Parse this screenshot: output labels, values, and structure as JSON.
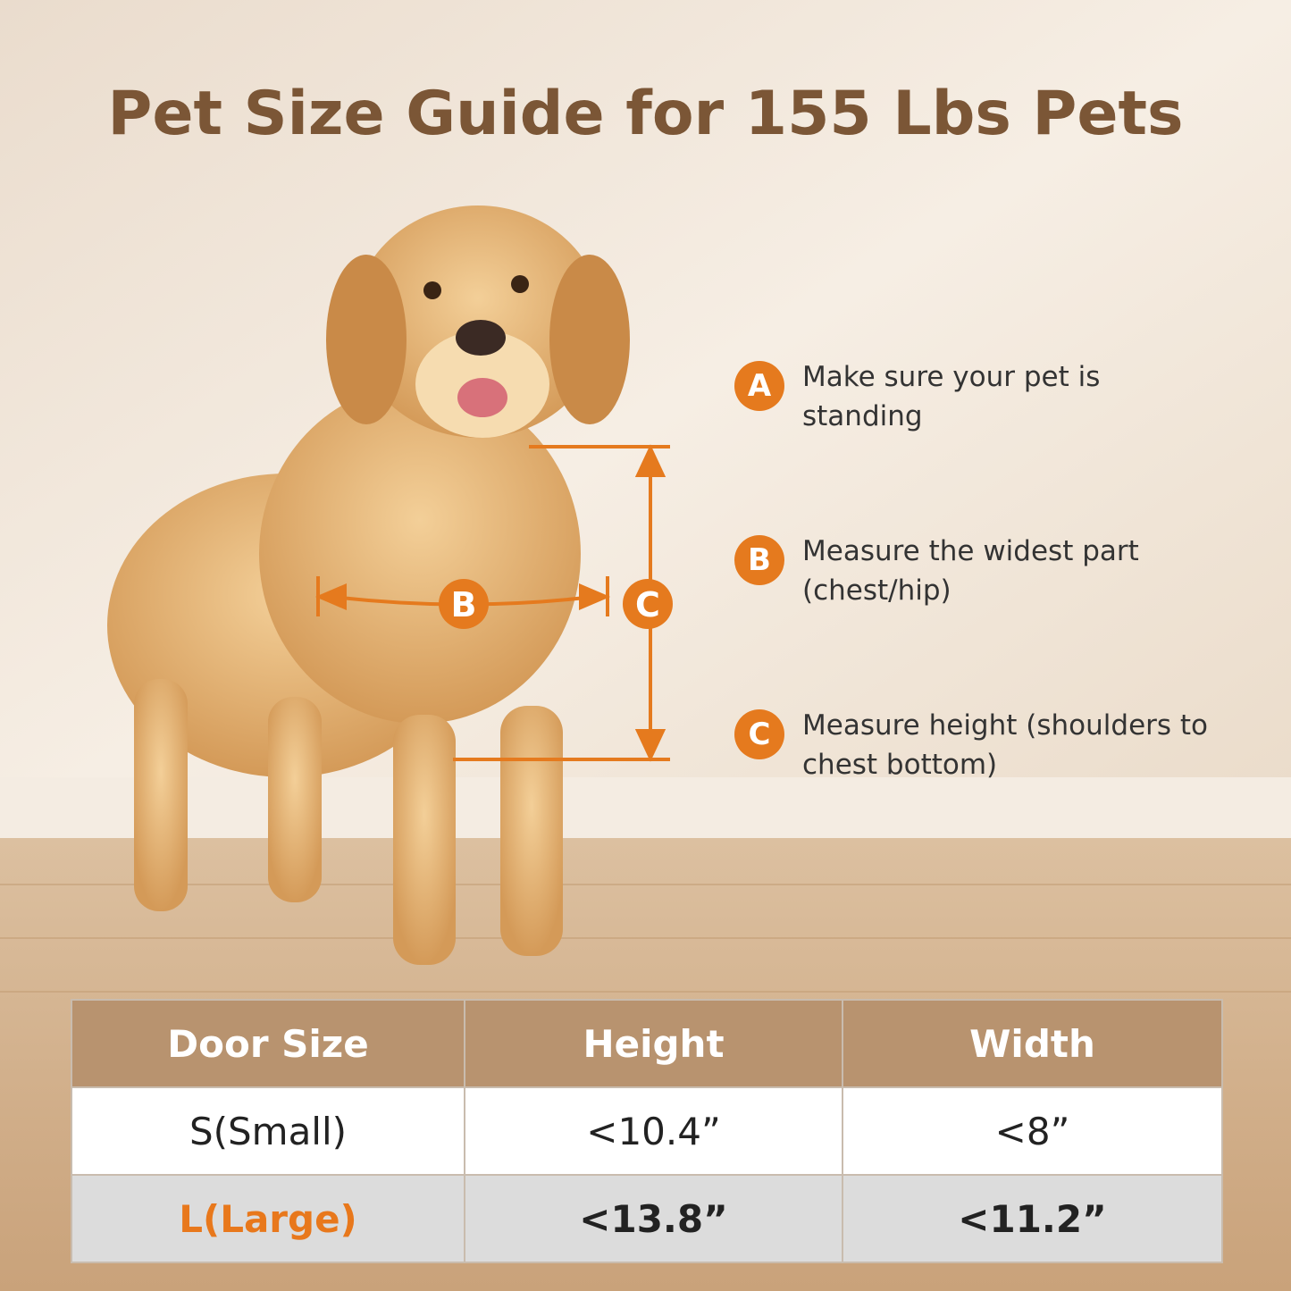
{
  "header": {
    "title": "Pet Size Guide for 155 Lbs Pets"
  },
  "diagram": {
    "width_label": "B",
    "height_label": "C"
  },
  "steps": [
    {
      "badge": "A",
      "text": "Make sure your pet is standing"
    },
    {
      "badge": "B",
      "text": "Measure the widest part (chest/hip)"
    },
    {
      "badge": "C",
      "text": "Measure height (shoulders to chest bottom)"
    }
  ],
  "table": {
    "header": [
      "Door Size",
      "Height",
      "Width"
    ],
    "rows": [
      [
        "S(Small)",
        "<10.4”",
        "<8”"
      ],
      [
        "L(Large)",
        "<13.8”",
        "<11.2”"
      ]
    ]
  }
}
